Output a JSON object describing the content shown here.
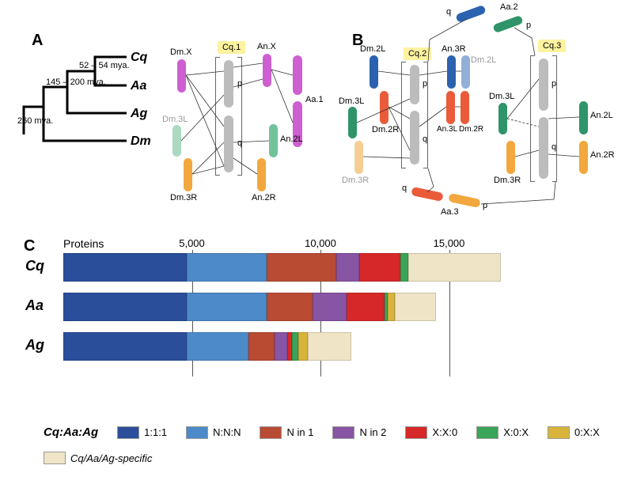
{
  "panels": {
    "A": "A",
    "B": "B",
    "C": "C"
  },
  "tree": {
    "species": [
      "Cq",
      "Aa",
      "Ag",
      "Dm"
    ],
    "t1": "52 – 54 mya.",
    "t2": "145 – 200 mya.",
    "t3": "260 mya."
  },
  "diagram": {
    "cq1": "Cq.1",
    "cq2": "Cq.2",
    "cq3": "Cq.3",
    "dmX": "Dm.X",
    "anX": "An.X",
    "aa1": "Aa.1",
    "dm3L": "Dm.3L",
    "dm3R": "Dm.3R",
    "an2L": "An.2L",
    "an2R": "An.2R",
    "dm2L": "Dm.2L",
    "dm2R": "Dm.2R",
    "an3R": "An.3R",
    "an3L": "An.3L",
    "aa2": "Aa.2",
    "aa3": "Aa.3",
    "an2R_b": "An.2R",
    "an2L_b": "An.2L",
    "p": "p",
    "q": "q",
    "colors": {
      "magenta": "#ce5fd0",
      "green": "#72c29a",
      "green_faded": "#abd9c1",
      "orange": "#f2a83e",
      "orange_faded": "#f6cd94",
      "blue": "#2b62b0",
      "blue_faded": "#91b0d7",
      "red": "#ea5b3a",
      "gray": "#bcbcbc",
      "darkgreen": "#2f9469"
    }
  },
  "chart": {
    "title": "Proteins",
    "ticks": [
      5000,
      10000,
      15000
    ],
    "tick_labels": [
      "5,000",
      "10,000",
      "15,000"
    ],
    "max": 20000,
    "rows": [
      {
        "label": "Cq",
        "segs": [
          {
            "c": "#2b4e9b",
            "v": 4800
          },
          {
            "c": "#4d8ac9",
            "v": 3100
          },
          {
            "c": "#b94b33",
            "v": 2700
          },
          {
            "c": "#8854a4",
            "v": 900
          },
          {
            "c": "#d62828",
            "v": 1600
          },
          {
            "c": "#3aa558",
            "v": 300
          },
          {
            "c": "#efe4c5",
            "v": 3600
          }
        ]
      },
      {
        "label": "Aa",
        "segs": [
          {
            "c": "#2b4e9b",
            "v": 4800
          },
          {
            "c": "#4d8ac9",
            "v": 3100
          },
          {
            "c": "#b94b33",
            "v": 1800
          },
          {
            "c": "#8854a4",
            "v": 1300
          },
          {
            "c": "#d62828",
            "v": 1500
          },
          {
            "c": "#3aa558",
            "v": 100
          },
          {
            "c": "#d8b43a",
            "v": 300
          },
          {
            "c": "#efe4c5",
            "v": 1600
          }
        ]
      },
      {
        "label": "Ag",
        "segs": [
          {
            "c": "#2b4e9b",
            "v": 4800
          },
          {
            "c": "#4d8ac9",
            "v": 2400
          },
          {
            "c": "#b94b33",
            "v": 1000
          },
          {
            "c": "#8854a4",
            "v": 500
          },
          {
            "c": "#d62828",
            "v": 200
          },
          {
            "c": "#3aa558",
            "v": 250
          },
          {
            "c": "#d8b43a",
            "v": 350
          },
          {
            "c": "#efe4c5",
            "v": 1700
          }
        ]
      }
    ],
    "legend_label": "Cq:Aa:Ag",
    "legend": [
      {
        "c": "#2b4e9b",
        "t": "1:1:1"
      },
      {
        "c": "#4d8ac9",
        "t": "N:N:N"
      },
      {
        "c": "#b94b33",
        "t": "N in 1"
      },
      {
        "c": "#8854a4",
        "t": "N in 2"
      },
      {
        "c": "#d62828",
        "t": "X:X:0"
      },
      {
        "c": "#3aa558",
        "t": "X:0:X"
      },
      {
        "c": "#d8b43a",
        "t": "0:X:X"
      },
      {
        "c": "#efe4c5",
        "t": "Cq/Aa/Ag-specific",
        "it": true
      }
    ]
  }
}
